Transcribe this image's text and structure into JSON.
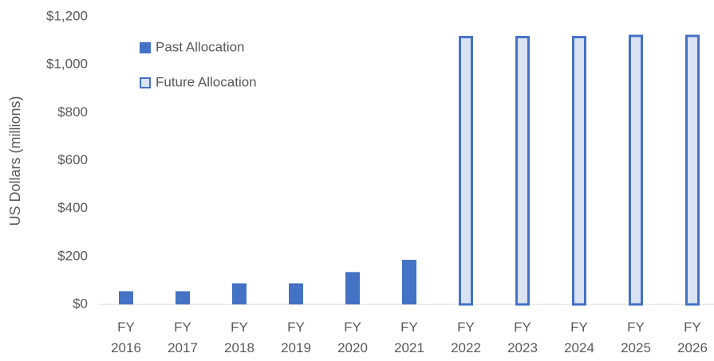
{
  "chart_data": {
    "type": "bar",
    "y_label": "US Dollars (millions)",
    "categories": [
      "FY 2016",
      "FY 2017",
      "FY 2018",
      "FY 2019",
      "FY 2020",
      "FY 2021",
      "FY 2022",
      "FY 2023",
      "FY 2024",
      "FY 2025",
      "FY 2026"
    ],
    "series": [
      {
        "name": "Past Allocation",
        "color": "#4472c4",
        "values": [
          55,
          55,
          88,
          88,
          135,
          186,
          null,
          null,
          null,
          null,
          null
        ]
      },
      {
        "name": "Future Allocation",
        "color": "#dae3f3",
        "edge_color": "#4472c4",
        "values": [
          null,
          null,
          null,
          null,
          null,
          null,
          1120,
          1120,
          1120,
          1125,
          1125
        ]
      }
    ],
    "ylim": [
      0,
      1200
    ],
    "yticks": [
      {
        "value": 0,
        "label": "$0"
      },
      {
        "value": 200,
        "label": "$200"
      },
      {
        "value": 400,
        "label": "$400"
      },
      {
        "value": 600,
        "label": "$600"
      },
      {
        "value": 800,
        "label": "$800"
      },
      {
        "value": 1000,
        "label": "$1,000"
      },
      {
        "value": 1200,
        "label": "$1,200"
      }
    ],
    "grid": false,
    "legend": "upper left"
  }
}
